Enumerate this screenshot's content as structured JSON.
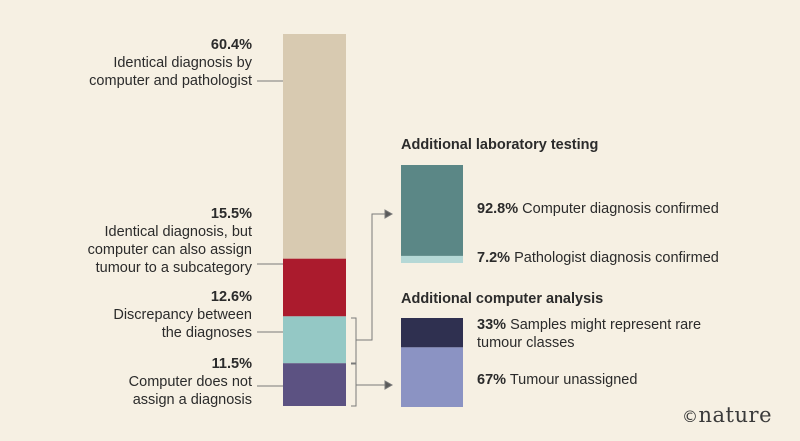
{
  "chart_data": {
    "type": "stacked-bar",
    "title": "",
    "main": {
      "segments": [
        {
          "key": "identical",
          "pct_label": "60.4%",
          "value": 60.4,
          "desc": "Identical diagnosis by computer and pathologist",
          "color": "#d8cab1"
        },
        {
          "key": "subcategory",
          "pct_label": "15.5%",
          "value": 15.5,
          "desc": "Identical diagnosis, but computer can also assign tumour to a subcategory",
          "color": "#ab1b2d"
        },
        {
          "key": "discrepancy",
          "pct_label": "12.6%",
          "value": 12.6,
          "desc": "Discrepancy between the diagnoses",
          "color": "#94c8c5"
        },
        {
          "key": "unassigned",
          "pct_label": "11.5%",
          "value": 11.5,
          "desc": "Computer does not assign a diagnosis",
          "color": "#5c5282"
        }
      ]
    },
    "lab_testing": {
      "title": "Additional laboratory testing",
      "segments": [
        {
          "pct_label": "92.8%",
          "value": 92.8,
          "desc": "Computer diagnosis confirmed",
          "color": "#5b8786"
        },
        {
          "pct_label": "7.2%",
          "value": 7.2,
          "desc": "Pathologist diagnosis confirmed",
          "color": "#b5d8d6"
        }
      ]
    },
    "computer_analysis": {
      "title": "Additional computer analysis",
      "segments": [
        {
          "pct_label": "33%",
          "value": 33,
          "desc": "Samples might represent rare tumour classes",
          "color": "#2f3050"
        },
        {
          "pct_label": "67%",
          "value": 67,
          "desc": "Tumour unassigned",
          "color": "#8b93c3"
        }
      ]
    }
  },
  "credit": {
    "symbol": "©",
    "name": "nature"
  }
}
